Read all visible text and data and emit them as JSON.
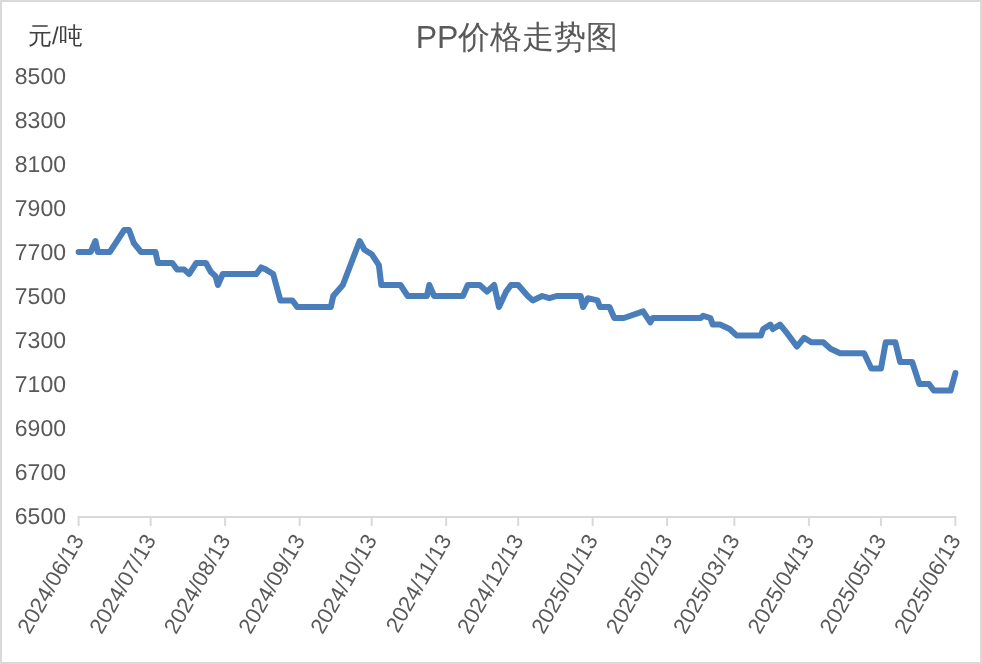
{
  "chart_data": {
    "type": "line",
    "title": "PP价格走势图",
    "ylabel": "元/吨",
    "x": [
      "2024-06-13",
      "2024-06-18",
      "2024-06-20",
      "2024-06-21",
      "2024-06-26",
      "2024-07-02",
      "2024-07-04",
      "2024-07-06",
      "2024-07-09",
      "2024-07-15",
      "2024-07-16",
      "2024-07-22",
      "2024-07-24",
      "2024-07-27",
      "2024-07-29",
      "2024-08-01",
      "2024-08-05",
      "2024-08-07",
      "2024-08-09",
      "2024-08-10",
      "2024-08-12",
      "2024-08-26",
      "2024-08-28",
      "2024-08-30",
      "2024-09-02",
      "2024-09-05",
      "2024-09-10",
      "2024-09-12",
      "2024-09-26",
      "2024-09-27",
      "2024-10-01",
      "2024-10-08",
      "2024-10-10",
      "2024-10-13",
      "2024-10-16",
      "2024-10-17",
      "2024-10-25",
      "2024-10-28",
      "2024-11-05",
      "2024-11-06",
      "2024-11-08",
      "2024-11-20",
      "2024-11-22",
      "2024-11-27",
      "2024-11-30",
      "2024-12-03",
      "2024-12-05",
      "2024-12-08",
      "2024-12-10",
      "2024-12-13",
      "2024-12-17",
      "2024-12-19",
      "2024-12-23",
      "2024-12-26",
      "2024-12-29",
      "2025-01-08",
      "2025-01-09",
      "2025-01-11",
      "2025-01-15",
      "2025-01-16",
      "2025-01-20",
      "2025-01-22",
      "2025-01-26",
      "2025-02-03",
      "2025-02-06",
      "2025-02-07",
      "2025-02-27",
      "2025-02-28",
      "2025-03-03",
      "2025-03-04",
      "2025-03-07",
      "2025-03-11",
      "2025-03-14",
      "2025-03-24",
      "2025-03-25",
      "2025-03-28",
      "2025-03-29",
      "2025-04-01",
      "2025-04-04",
      "2025-04-08",
      "2025-04-11",
      "2025-04-14",
      "2025-04-19",
      "2025-04-22",
      "2025-04-26",
      "2025-05-06",
      "2025-05-09",
      "2025-05-13",
      "2025-05-15",
      "2025-05-19",
      "2025-05-21",
      "2025-05-26",
      "2025-05-29",
      "2025-06-02",
      "2025-06-04",
      "2025-06-11",
      "2025-06-13"
    ],
    "series": [
      {
        "color": "#4a7ebb",
        "values": [
          7700,
          7700,
          7750,
          7700,
          7700,
          7800,
          7800,
          7740,
          7700,
          7700,
          7650,
          7650,
          7620,
          7620,
          7600,
          7650,
          7650,
          7610,
          7590,
          7550,
          7600,
          7600,
          7630,
          7620,
          7600,
          7480,
          7480,
          7450,
          7450,
          7500,
          7550,
          7750,
          7710,
          7690,
          7640,
          7550,
          7550,
          7500,
          7500,
          7550,
          7500,
          7500,
          7550,
          7550,
          7520,
          7550,
          7450,
          7520,
          7550,
          7550,
          7500,
          7480,
          7500,
          7490,
          7500,
          7500,
          7450,
          7490,
          7480,
          7450,
          7450,
          7400,
          7400,
          7430,
          7380,
          7400,
          7400,
          7410,
          7400,
          7370,
          7370,
          7350,
          7320,
          7320,
          7350,
          7370,
          7350,
          7370,
          7330,
          7270,
          7310,
          7290,
          7290,
          7260,
          7240,
          7240,
          7170,
          7170,
          7290,
          7290,
          7200,
          7200,
          7100,
          7100,
          7070,
          7070,
          7150
        ]
      }
    ],
    "xlim": [
      "2024-06-13",
      "2025-06-13"
    ],
    "xticks": [
      {
        "value": "2024-06-13",
        "label": "2024/06/13"
      },
      {
        "value": "2024-07-13",
        "label": "2024/07/13"
      },
      {
        "value": "2024-08-13",
        "label": "2024/08/13"
      },
      {
        "value": "2024-09-13",
        "label": "2024/09/13"
      },
      {
        "value": "2024-10-13",
        "label": "2024/10/13"
      },
      {
        "value": "2024-11-13",
        "label": "2024/11/13"
      },
      {
        "value": "2024-12-13",
        "label": "2024/12/13"
      },
      {
        "value": "2025-01-13",
        "label": "2025/01/13"
      },
      {
        "value": "2025-02-13",
        "label": "2025/02/13"
      },
      {
        "value": "2025-03-13",
        "label": "2025/03/13"
      },
      {
        "value": "2025-04-13",
        "label": "2025/04/13"
      },
      {
        "value": "2025-05-13",
        "label": "2025/05/13"
      },
      {
        "value": "2025-06-13",
        "label": "2025/06/13"
      }
    ],
    "ylim": [
      6500,
      8500
    ],
    "yticks": [
      6500,
      6700,
      6900,
      7100,
      7300,
      7500,
      7700,
      7900,
      8100,
      8300,
      8500
    ],
    "grid": false,
    "marker": "none",
    "line_style": "solid"
  }
}
